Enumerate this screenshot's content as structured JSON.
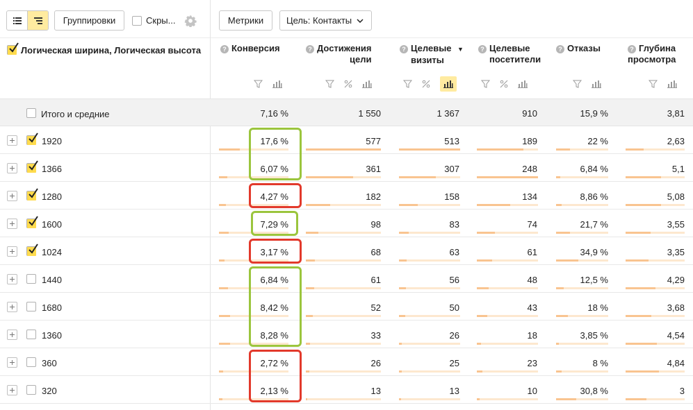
{
  "toolbar": {
    "groupings_label": "Группировки",
    "hide_label": "Скры...",
    "metrics_label": "Метрики",
    "goal_label": "Цель: Контакты"
  },
  "table": {
    "dimension_header": "Логическая ширина, Логическая высота",
    "columns": [
      {
        "name": "Конверсия",
        "line1": "Конверсия",
        "line2": "",
        "sorted": false
      },
      {
        "name": "Достижения цели",
        "line1": "Достижения",
        "line2": "цели",
        "sorted": false
      },
      {
        "name": "Целевые визиты",
        "line1": "Целевые",
        "line2": "визиты",
        "sorted": true
      },
      {
        "name": "Целевые посетители",
        "line1": "Целевые",
        "line2": "посетители",
        "sorted": false
      },
      {
        "name": "Отказы",
        "line1": "Отказы",
        "line2": "",
        "sorted": false
      },
      {
        "name": "Глубина просмотра",
        "line1": "Глубина",
        "line2": "просмотра",
        "sorted": false
      }
    ],
    "totals": {
      "label": "Итого и средние",
      "values": [
        "7,16 %",
        "1 550",
        "1 367",
        "910",
        "15,9 %",
        "3,81"
      ]
    },
    "rows": [
      {
        "label": "1920",
        "checked": true,
        "values": [
          "17,6 %",
          "577",
          "513",
          "189",
          "22 %",
          "2,63"
        ],
        "fill": [
          0.3,
          1.0,
          1.0,
          0.76,
          0.27,
          0.3
        ],
        "highlight": "green"
      },
      {
        "label": "1366",
        "checked": true,
        "values": [
          "6,07 %",
          "361",
          "307",
          "248",
          "6,84 %",
          "5,1"
        ],
        "fill": [
          0.12,
          0.63,
          0.6,
          1.0,
          0.08,
          0.6
        ],
        "highlight": "green"
      },
      {
        "label": "1280",
        "checked": true,
        "values": [
          "4,27 %",
          "182",
          "158",
          "134",
          "8,86 %",
          "5,08"
        ],
        "fill": [
          0.1,
          0.32,
          0.31,
          0.54,
          0.11,
          0.6
        ],
        "highlight": "red"
      },
      {
        "label": "1600",
        "checked": true,
        "values": [
          "7,29 %",
          "98",
          "83",
          "74",
          "21,7 %",
          "3,55"
        ],
        "fill": [
          0.14,
          0.17,
          0.16,
          0.3,
          0.27,
          0.42
        ],
        "highlight": "green"
      },
      {
        "label": "1024",
        "checked": true,
        "values": [
          "3,17 %",
          "68",
          "63",
          "61",
          "34,9 %",
          "3,35"
        ],
        "fill": [
          0.08,
          0.12,
          0.12,
          0.25,
          0.43,
          0.39
        ],
        "highlight": "red"
      },
      {
        "label": "1440",
        "checked": false,
        "values": [
          "6,84 %",
          "61",
          "56",
          "48",
          "12,5 %",
          "4,29"
        ],
        "fill": [
          0.13,
          0.11,
          0.11,
          0.19,
          0.15,
          0.5
        ],
        "highlight": "green"
      },
      {
        "label": "1680",
        "checked": false,
        "values": [
          "8,42 %",
          "52",
          "50",
          "43",
          "18 %",
          "3,68"
        ],
        "fill": [
          0.16,
          0.09,
          0.1,
          0.17,
          0.22,
          0.43
        ],
        "highlight": "green"
      },
      {
        "label": "1360",
        "checked": false,
        "values": [
          "8,28 %",
          "33",
          "26",
          "18",
          "3,85 %",
          "4,54"
        ],
        "fill": [
          0.16,
          0.06,
          0.05,
          0.07,
          0.05,
          0.53
        ],
        "highlight": "green"
      },
      {
        "label": "360",
        "checked": false,
        "values": [
          "2,72 %",
          "26",
          "25",
          "23",
          "8 %",
          "4,84"
        ],
        "fill": [
          0.06,
          0.05,
          0.05,
          0.09,
          0.1,
          0.57
        ],
        "highlight": "red"
      },
      {
        "label": "320",
        "checked": false,
        "values": [
          "2,13 %",
          "13",
          "13",
          "10",
          "30,8 %",
          "3"
        ],
        "fill": [
          0.05,
          0.02,
          0.03,
          0.04,
          0.38,
          0.35
        ],
        "highlight": "red"
      }
    ]
  },
  "colors": {
    "accent_yellow": "#ffdb4d",
    "highlight_green": "#9bc53d",
    "highlight_red": "#e2392b",
    "bar_fill": "#f9c490",
    "bar_track": "#fde8cf"
  },
  "icons": [
    "list-view-icon",
    "tree-view-icon",
    "gear-icon",
    "chevron-down-icon",
    "help-icon",
    "filter-icon",
    "percent-icon",
    "bar-chart-icon",
    "checkmark-icon",
    "expand-plus-icon"
  ]
}
